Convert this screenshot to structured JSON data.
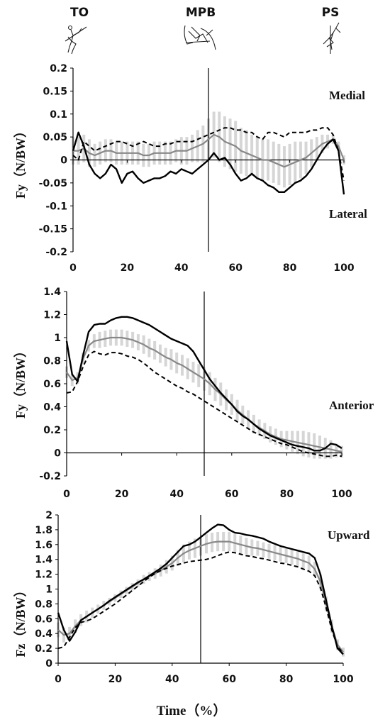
{
  "phases": [
    {
      "label": "TO",
      "icon": "runner-toe-off-figure"
    },
    {
      "label": "MPB",
      "icon": "runner-maximal-pole-bend-figure"
    },
    {
      "label": "PS",
      "icon": "runner-pole-straight-figure"
    }
  ],
  "xlabel": "Time（%）",
  "chart_data": [
    {
      "type": "line",
      "ylabel": "Fy（N/BW）",
      "annotations": [
        "Medial",
        "Lateral"
      ],
      "xlim": [
        0,
        100
      ],
      "ylim": [
        -0.2,
        0.2
      ],
      "xticks": [
        0,
        20,
        40,
        60,
        80,
        100
      ],
      "yticks": [
        0.2,
        0.15,
        0.1,
        0.05,
        0,
        -0.05,
        -0.1,
        -0.15,
        -0.2
      ],
      "ytick_labels": [
        "0.2",
        "0.15",
        "0.1",
        "0.05",
        "0",
        "-0.05",
        "-0.1",
        "-0.15",
        "-0.2"
      ],
      "zero_line": true,
      "vline_x": 50,
      "x": [
        0,
        2,
        4,
        6,
        8,
        10,
        12,
        14,
        16,
        18,
        20,
        22,
        24,
        26,
        28,
        30,
        32,
        34,
        36,
        38,
        40,
        42,
        44,
        46,
        48,
        50,
        52,
        54,
        56,
        58,
        60,
        62,
        64,
        66,
        68,
        70,
        72,
        74,
        76,
        78,
        80,
        82,
        84,
        86,
        88,
        90,
        92,
        94,
        96,
        98,
        100
      ],
      "series": [
        {
          "style": "solid-black",
          "values": [
            0.02,
            0.06,
            0.03,
            -0.01,
            -0.03,
            -0.04,
            -0.03,
            -0.01,
            -0.02,
            -0.05,
            -0.03,
            -0.025,
            -0.04,
            -0.05,
            -0.045,
            -0.04,
            -0.04,
            -0.035,
            -0.025,
            -0.03,
            -0.02,
            -0.025,
            -0.03,
            -0.02,
            -0.01,
            0.0,
            0.015,
            0.0,
            0.005,
            -0.01,
            -0.03,
            -0.045,
            -0.04,
            -0.03,
            -0.04,
            -0.045,
            -0.055,
            -0.06,
            -0.07,
            -0.07,
            -0.06,
            -0.05,
            -0.045,
            -0.035,
            -0.02,
            0.0,
            0.02,
            0.035,
            0.045,
            0.02,
            -0.075
          ]
        },
        {
          "style": "dashed-black",
          "values": [
            0.01,
            0.0,
            0.04,
            0.03,
            0.02,
            0.025,
            0.03,
            0.035,
            0.04,
            0.04,
            0.035,
            0.03,
            0.035,
            0.04,
            0.035,
            0.03,
            0.03,
            0.035,
            0.035,
            0.04,
            0.04,
            0.04,
            0.04,
            0.045,
            0.05,
            0.055,
            0.06,
            0.065,
            0.07,
            0.07,
            0.065,
            0.065,
            0.06,
            0.06,
            0.05,
            0.045,
            0.06,
            0.06,
            0.055,
            0.05,
            0.06,
            0.06,
            0.06,
            0.06,
            0.065,
            0.065,
            0.07,
            0.07,
            0.055,
            0.02,
            -0.045
          ]
        },
        {
          "style": "mean-gray",
          "values": [
            0.02,
            0.02,
            0.025,
            0.015,
            0.01,
            0.015,
            0.02,
            0.02,
            0.015,
            0.015,
            0.015,
            0.015,
            0.015,
            0.01,
            0.01,
            0.015,
            0.015,
            0.015,
            0.015,
            0.02,
            0.02,
            0.02,
            0.025,
            0.03,
            0.035,
            0.045,
            0.055,
            0.05,
            0.04,
            0.035,
            0.03,
            0.02,
            0.015,
            0.01,
            0.005,
            0.0,
            0.0,
            -0.005,
            -0.01,
            -0.015,
            -0.01,
            -0.005,
            0.0,
            0.005,
            0.015,
            0.025,
            0.035,
            0.04,
            0.045,
            0.03,
            0.0
          ]
        },
        {
          "style": "sd-band",
          "values": [
            0.03,
            0.03,
            0.03,
            0.03,
            0.025,
            0.025,
            0.025,
            0.025,
            0.025,
            0.025,
            0.025,
            0.025,
            0.025,
            0.025,
            0.025,
            0.025,
            0.025,
            0.025,
            0.025,
            0.025,
            0.03,
            0.03,
            0.03,
            0.035,
            0.04,
            0.045,
            0.05,
            0.055,
            0.055,
            0.055,
            0.055,
            0.05,
            0.05,
            0.045,
            0.045,
            0.045,
            0.045,
            0.045,
            0.045,
            0.045,
            0.045,
            0.045,
            0.04,
            0.035,
            0.03,
            0.025,
            0.02,
            0.015,
            0.01,
            0.01,
            0.01
          ]
        }
      ]
    },
    {
      "type": "line",
      "ylabel": "Fy（N/BW）",
      "annotations": [
        "Anterior"
      ],
      "xlim": [
        0,
        100
      ],
      "ylim": [
        -0.2,
        1.4
      ],
      "xticks": [
        0,
        20,
        40,
        60,
        80,
        100
      ],
      "yticks": [
        1.4,
        1.2,
        1.0,
        0.8,
        0.6,
        0.4,
        0.2,
        0,
        -0.2
      ],
      "ytick_labels": [
        "1.4",
        "1.2",
        "1",
        "0.8",
        "0.6",
        "0.4",
        "0.2",
        "0",
        "-0.2"
      ],
      "zero_line": true,
      "vline_x": 50,
      "x": [
        0,
        2,
        4,
        6,
        8,
        10,
        12,
        14,
        16,
        18,
        20,
        22,
        24,
        26,
        28,
        30,
        32,
        34,
        36,
        38,
        40,
        42,
        44,
        46,
        48,
        50,
        52,
        54,
        56,
        58,
        60,
        62,
        64,
        66,
        68,
        70,
        72,
        74,
        76,
        78,
        80,
        82,
        84,
        86,
        88,
        90,
        92,
        94,
        96,
        98,
        100
      ],
      "series": [
        {
          "style": "solid-black",
          "values": [
            0.97,
            0.68,
            0.62,
            0.85,
            1.05,
            1.11,
            1.12,
            1.12,
            1.15,
            1.17,
            1.18,
            1.18,
            1.17,
            1.15,
            1.13,
            1.11,
            1.08,
            1.05,
            1.02,
            0.99,
            0.97,
            0.95,
            0.93,
            0.88,
            0.8,
            0.72,
            0.64,
            0.58,
            0.52,
            0.47,
            0.42,
            0.36,
            0.32,
            0.29,
            0.25,
            0.21,
            0.18,
            0.15,
            0.13,
            0.11,
            0.09,
            0.07,
            0.06,
            0.05,
            0.04,
            0.02,
            0.02,
            0.04,
            0.08,
            0.07,
            0.04
          ]
        },
        {
          "style": "dashed-black",
          "values": [
            0.52,
            0.53,
            0.62,
            0.75,
            0.85,
            0.88,
            0.86,
            0.85,
            0.87,
            0.87,
            0.86,
            0.84,
            0.83,
            0.81,
            0.78,
            0.74,
            0.7,
            0.67,
            0.64,
            0.61,
            0.58,
            0.56,
            0.53,
            0.51,
            0.48,
            0.45,
            0.42,
            0.39,
            0.36,
            0.33,
            0.3,
            0.27,
            0.24,
            0.21,
            0.18,
            0.16,
            0.14,
            0.12,
            0.1,
            0.08,
            0.07,
            0.05,
            0.03,
            0.01,
            0.0,
            -0.01,
            -0.02,
            -0.03,
            -0.03,
            -0.02,
            -0.03
          ]
        },
        {
          "style": "mean-gray",
          "values": [
            0.7,
            0.63,
            0.65,
            0.82,
            0.93,
            0.97,
            0.98,
            0.99,
            1.0,
            1.0,
            1.0,
            0.99,
            0.98,
            0.96,
            0.94,
            0.91,
            0.89,
            0.86,
            0.83,
            0.81,
            0.78,
            0.76,
            0.73,
            0.7,
            0.67,
            0.64,
            0.6,
            0.55,
            0.51,
            0.46,
            0.42,
            0.37,
            0.33,
            0.29,
            0.25,
            0.22,
            0.19,
            0.16,
            0.14,
            0.12,
            0.11,
            0.1,
            0.09,
            0.08,
            0.07,
            0.06,
            0.05,
            0.04,
            0.03,
            0.02,
            0.01
          ]
        },
        {
          "style": "sd-band",
          "values": [
            0.05,
            0.05,
            0.05,
            0.05,
            0.05,
            0.06,
            0.07,
            0.07,
            0.07,
            0.07,
            0.07,
            0.07,
            0.07,
            0.07,
            0.08,
            0.08,
            0.08,
            0.08,
            0.08,
            0.09,
            0.09,
            0.09,
            0.09,
            0.09,
            0.1,
            0.1,
            0.1,
            0.1,
            0.1,
            0.09,
            0.09,
            0.09,
            0.08,
            0.08,
            0.08,
            0.07,
            0.07,
            0.07,
            0.07,
            0.07,
            0.08,
            0.09,
            0.1,
            0.11,
            0.11,
            0.11,
            0.1,
            0.09,
            0.08,
            0.06,
            0.05
          ]
        }
      ]
    },
    {
      "type": "line",
      "ylabel": "Fz（N/BW）",
      "annotations": [
        "Upward"
      ],
      "xlim": [
        0,
        100
      ],
      "ylim": [
        0,
        2
      ],
      "xticks": [
        0,
        20,
        40,
        60,
        80,
        100
      ],
      "yticks": [
        2,
        1.8,
        1.6,
        1.4,
        1.2,
        1.0,
        0.8,
        0.6,
        0.4,
        0.2,
        0
      ],
      "ytick_labels": [
        "2",
        "1.8",
        "1.6",
        "1.4",
        "1.2",
        "1",
        "0.8",
        "0.6",
        "0.4",
        "0.2",
        "0"
      ],
      "zero_line": false,
      "vline_x": 50,
      "x": [
        0,
        2,
        4,
        6,
        8,
        10,
        12,
        14,
        16,
        18,
        20,
        22,
        24,
        26,
        28,
        30,
        32,
        34,
        36,
        38,
        40,
        42,
        44,
        46,
        48,
        50,
        52,
        54,
        56,
        58,
        60,
        62,
        64,
        66,
        68,
        70,
        72,
        74,
        76,
        78,
        80,
        82,
        84,
        86,
        88,
        90,
        92,
        94,
        96,
        98,
        100
      ],
      "series": [
        {
          "style": "solid-black",
          "values": [
            0.68,
            0.45,
            0.3,
            0.42,
            0.58,
            0.63,
            0.68,
            0.73,
            0.78,
            0.84,
            0.89,
            0.94,
            0.99,
            1.04,
            1.09,
            1.13,
            1.18,
            1.23,
            1.28,
            1.34,
            1.42,
            1.5,
            1.58,
            1.6,
            1.64,
            1.7,
            1.76,
            1.82,
            1.87,
            1.86,
            1.8,
            1.76,
            1.75,
            1.73,
            1.72,
            1.7,
            1.68,
            1.64,
            1.61,
            1.58,
            1.56,
            1.54,
            1.52,
            1.5,
            1.48,
            1.42,
            1.2,
            0.85,
            0.5,
            0.2,
            0.12
          ]
        },
        {
          "style": "dashed-black",
          "values": [
            0.2,
            0.22,
            0.35,
            0.48,
            0.55,
            0.57,
            0.6,
            0.65,
            0.7,
            0.75,
            0.8,
            0.86,
            0.92,
            0.98,
            1.04,
            1.1,
            1.16,
            1.21,
            1.25,
            1.28,
            1.31,
            1.33,
            1.35,
            1.37,
            1.38,
            1.39,
            1.4,
            1.42,
            1.45,
            1.48,
            1.5,
            1.49,
            1.47,
            1.45,
            1.44,
            1.42,
            1.41,
            1.39,
            1.37,
            1.35,
            1.34,
            1.32,
            1.3,
            1.27,
            1.24,
            1.18,
            1.02,
            0.75,
            0.45,
            0.22,
            0.14
          ]
        },
        {
          "style": "mean-gray",
          "values": [
            0.45,
            0.38,
            0.4,
            0.5,
            0.58,
            0.63,
            0.68,
            0.73,
            0.78,
            0.83,
            0.88,
            0.93,
            0.98,
            1.03,
            1.08,
            1.13,
            1.17,
            1.21,
            1.25,
            1.3,
            1.35,
            1.42,
            1.48,
            1.52,
            1.55,
            1.58,
            1.61,
            1.63,
            1.64,
            1.64,
            1.64,
            1.62,
            1.6,
            1.58,
            1.56,
            1.55,
            1.53,
            1.51,
            1.49,
            1.47,
            1.45,
            1.43,
            1.41,
            1.38,
            1.35,
            1.27,
            1.1,
            0.8,
            0.5,
            0.25,
            0.15
          ]
        },
        {
          "style": "sd-band",
          "values": [
            0.1,
            0.1,
            0.09,
            0.09,
            0.08,
            0.08,
            0.07,
            0.06,
            0.06,
            0.05,
            0.05,
            0.05,
            0.05,
            0.05,
            0.05,
            0.06,
            0.06,
            0.07,
            0.08,
            0.09,
            0.1,
            0.11,
            0.12,
            0.12,
            0.13,
            0.13,
            0.13,
            0.13,
            0.13,
            0.13,
            0.13,
            0.12,
            0.12,
            0.11,
            0.11,
            0.1,
            0.1,
            0.1,
            0.1,
            0.1,
            0.1,
            0.1,
            0.1,
            0.1,
            0.1,
            0.1,
            0.1,
            0.1,
            0.09,
            0.07,
            0.06
          ]
        }
      ]
    }
  ]
}
